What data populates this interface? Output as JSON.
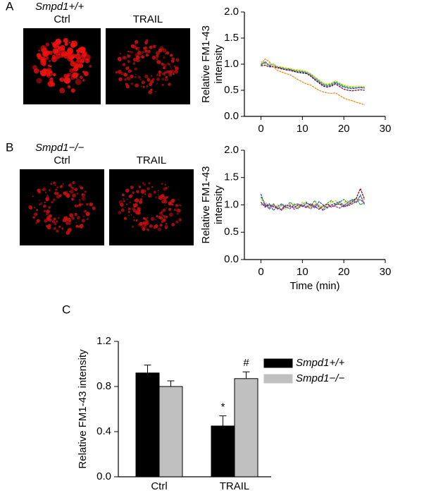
{
  "chart_data": [
    {
      "type": "line",
      "panel": "A",
      "genotype": "Smpd1+/+",
      "image_labels": [
        "Ctrl",
        "TRAIL"
      ],
      "y_label": [
        "Relative FM1-43",
        "intensity"
      ],
      "x": [
        0,
        1,
        2,
        3,
        4,
        5,
        6,
        7,
        8,
        9,
        10,
        11,
        12,
        13,
        14,
        15,
        16,
        17,
        18,
        19,
        20,
        21,
        22,
        23,
        24,
        25
      ],
      "series": [
        {
          "color": "#2e9e3a",
          "values": [
            1.0,
            1.02,
            0.98,
            1.0,
            0.95,
            0.93,
            0.92,
            0.9,
            0.88,
            0.87,
            0.86,
            0.85,
            0.8,
            0.75,
            0.68,
            0.62,
            0.6,
            0.62,
            0.66,
            0.62,
            0.58,
            0.56,
            0.55,
            0.55,
            0.56,
            0.55
          ]
        },
        {
          "color": "#d8d020",
          "values": [
            1.05,
            1.0,
            1.02,
            0.98,
            0.96,
            0.95,
            0.93,
            0.92,
            0.9,
            0.89,
            0.88,
            0.86,
            0.82,
            0.76,
            0.7,
            0.64,
            0.62,
            0.64,
            0.68,
            0.64,
            0.6,
            0.58,
            0.57,
            0.58,
            0.58,
            0.57
          ]
        },
        {
          "color": "#2a5cc8",
          "values": [
            0.98,
            1.05,
            0.97,
            0.96,
            0.94,
            0.92,
            0.9,
            0.9,
            0.87,
            0.85,
            0.85,
            0.83,
            0.78,
            0.72,
            0.66,
            0.6,
            0.58,
            0.6,
            0.64,
            0.6,
            0.56,
            0.54,
            0.53,
            0.54,
            0.55,
            0.54
          ]
        },
        {
          "color": "#7a1030",
          "values": [
            0.97,
            0.98,
            0.95,
            0.95,
            0.93,
            0.91,
            0.89,
            0.88,
            0.86,
            0.84,
            0.83,
            0.82,
            0.77,
            0.7,
            0.64,
            0.58,
            0.56,
            0.58,
            0.62,
            0.57,
            0.52,
            0.5,
            0.49,
            0.5,
            0.51,
            0.5
          ]
        },
        {
          "color": "#f08c1e",
          "values": [
            1.0,
            1.1,
            1.05,
            0.95,
            0.88,
            0.85,
            0.82,
            0.8,
            0.75,
            0.7,
            0.66,
            0.62,
            0.6,
            0.55,
            0.5,
            0.47,
            0.45,
            0.44,
            0.45,
            0.4,
            0.35,
            0.32,
            0.3,
            0.27,
            0.25,
            0.22
          ]
        }
      ],
      "xlim": [
        -4,
        30
      ],
      "xticks": [
        0,
        10,
        20,
        30
      ],
      "ylim": [
        0,
        2
      ],
      "yticks": [
        {
          "value": 0,
          "label": "0.0"
        },
        {
          "value": 0.5,
          "label": "0.5"
        },
        {
          "value": 1,
          "label": "1.0"
        },
        {
          "value": 1.5,
          "label": "1.5"
        },
        {
          "value": 2,
          "label": "2.0"
        }
      ]
    },
    {
      "type": "line",
      "panel": "B",
      "genotype": "Smpd1−/−",
      "image_labels": [
        "Ctrl",
        "TRAIL"
      ],
      "y_label": [
        "Relative FM1-43",
        "intensity"
      ],
      "x_label": "Time (min)",
      "x": [
        0,
        1,
        2,
        3,
        4,
        5,
        6,
        7,
        8,
        9,
        10,
        11,
        12,
        13,
        14,
        15,
        16,
        17,
        18,
        19,
        20,
        21,
        22,
        23,
        24,
        25
      ],
      "series": [
        {
          "color": "#2e9e3a",
          "values": [
            1.15,
            1.0,
            0.95,
            1.02,
            0.92,
            1.0,
            0.95,
            1.05,
            0.98,
            0.93,
            1.02,
            1.05,
            0.98,
            1.08,
            0.95,
            0.92,
            1.03,
            1.08,
            1.0,
            1.05,
            1.1,
            1.02,
            1.08,
            1.12,
            1.0,
            1.05
          ]
        },
        {
          "color": "#d8d020",
          "values": [
            1.1,
            1.05,
            0.98,
            0.95,
            1.0,
            0.97,
            0.92,
            1.0,
            1.03,
            0.96,
            1.05,
            1.0,
            0.95,
            1.02,
            1.0,
            0.96,
            0.98,
            1.05,
            1.08,
            1.0,
            1.03,
            1.08,
            1.0,
            1.1,
            1.15,
            1.08
          ]
        },
        {
          "color": "#2a5cc8",
          "values": [
            1.2,
            0.98,
            1.02,
            0.9,
            0.97,
            1.02,
            0.96,
            0.93,
            1.0,
            1.02,
            0.97,
            1.03,
            1.0,
            0.94,
            1.06,
            1.0,
            0.94,
            1.0,
            1.03,
            1.06,
            0.98,
            1.05,
            1.1,
            1.04,
            1.18,
            1.0
          ]
        },
        {
          "color": "#7a1030",
          "values": [
            1.05,
            0.96,
            1.0,
            0.97,
            0.94,
            0.92,
            1.0,
            0.97,
            0.95,
            1.0,
            0.98,
            0.95,
            1.02,
            0.97,
            0.92,
            0.98,
            1.02,
            0.96,
            1.0,
            1.02,
            0.96,
            1.0,
            1.05,
            1.12,
            1.3,
            1.1
          ]
        },
        {
          "color": "#8e3aa8",
          "values": [
            1.0,
            1.02,
            0.92,
            1.0,
            0.95,
            0.9,
            0.98,
            1.0,
            0.92,
            0.95,
            1.0,
            0.97,
            0.93,
            1.0,
            0.98,
            0.9,
            0.96,
            1.0,
            0.97,
            0.94,
            1.0,
            0.98,
            1.02,
            1.06,
            1.1,
            1.02
          ]
        }
      ],
      "xlim": [
        -4,
        30
      ],
      "xticks": [
        0,
        10,
        20,
        30
      ],
      "ylim": [
        0,
        2
      ],
      "yticks": [
        {
          "value": 0,
          "label": "0.0"
        },
        {
          "value": 0.5,
          "label": "0.5"
        },
        {
          "value": 1,
          "label": "1.0"
        },
        {
          "value": 1.5,
          "label": "1.5"
        },
        {
          "value": 2,
          "label": "2.0"
        }
      ]
    },
    {
      "type": "bar",
      "panel": "C",
      "y_label": "Relative FM1-43 intensity",
      "categories": [
        "Ctrl",
        "TRAIL"
      ],
      "series": [
        {
          "name": "Smpd1+/+",
          "color": "#000000",
          "values": [
            0.92,
            0.45
          ],
          "errors": [
            0.07,
            0.09
          ]
        },
        {
          "name": "Smpd1−/−",
          "color": "#c0c0c0",
          "values": [
            0.8,
            0.87
          ],
          "errors": [
            0.05,
            0.06
          ]
        }
      ],
      "annotations": [
        {
          "series": 0,
          "category": 1,
          "text": "*"
        },
        {
          "series": 1,
          "category": 1,
          "text": "#"
        }
      ],
      "ylim": [
        0,
        1.2
      ],
      "yticks": [
        {
          "value": 0,
          "label": "0.0"
        },
        {
          "value": 0.4,
          "label": "0.4"
        },
        {
          "value": 0.8,
          "label": "0.8"
        },
        {
          "value": 1.2,
          "label": "1.2"
        }
      ]
    }
  ]
}
